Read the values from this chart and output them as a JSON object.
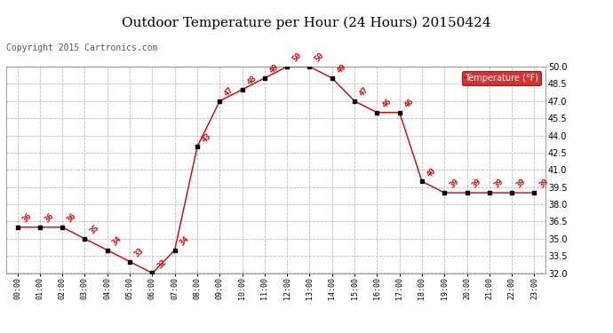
{
  "title": "Outdoor Temperature per Hour (24 Hours) 20150424",
  "copyright": "Copyright 2015 Cartronics.com",
  "hours": [
    "00:00",
    "01:00",
    "02:00",
    "03:00",
    "04:00",
    "05:00",
    "06:00",
    "07:00",
    "08:00",
    "09:00",
    "10:00",
    "11:00",
    "12:00",
    "13:00",
    "14:00",
    "15:00",
    "16:00",
    "17:00",
    "18:00",
    "19:00",
    "20:00",
    "21:00",
    "22:00",
    "23:00"
  ],
  "temps": [
    36,
    36,
    36,
    35,
    34,
    33,
    32,
    34,
    43,
    47,
    48,
    49,
    50,
    50,
    49,
    47,
    46,
    46,
    40,
    39,
    39,
    39,
    39,
    39
  ],
  "line_color": "#cc0000",
  "marker_color": "#000000",
  "label_color": "#cc0000",
  "legend_text": "Temperature (°F)",
  "legend_bg": "#cc0000",
  "legend_fg": "#ffffff",
  "ylim_min": 32.0,
  "ylim_max": 50.0,
  "yticks": [
    32.0,
    33.5,
    35.0,
    36.5,
    38.0,
    39.5,
    41.0,
    42.5,
    44.0,
    45.5,
    47.0,
    48.5,
    50.0
  ],
  "grid_color": "#bbbbbb",
  "bg_color": "#ffffff",
  "title_fontsize": 11,
  "copyright_fontsize": 7
}
